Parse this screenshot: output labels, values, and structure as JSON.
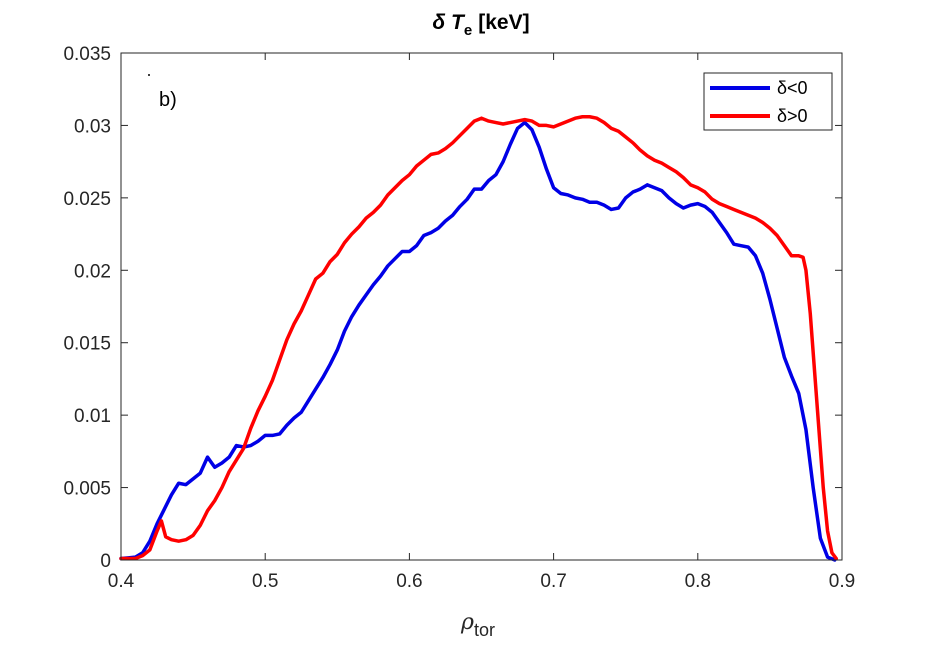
{
  "chart_data": {
    "type": "line",
    "title": "δ T",
    "title_subscript": "e",
    "title_suffix": "[keV]",
    "xlabel": "ρ",
    "xlabel_subscript": "tor",
    "ylabel": "",
    "annotation": "b)",
    "xlim": [
      0.4,
      0.9
    ],
    "ylim": [
      0,
      0.035
    ],
    "xticks": [
      0.4,
      0.5,
      0.6,
      0.7,
      0.8,
      0.9
    ],
    "xtick_labels": [
      "0.4",
      "0.5",
      "0.6",
      "0.7",
      "0.8",
      "0.9"
    ],
    "yticks": [
      0,
      0.005,
      0.01,
      0.015,
      0.02,
      0.025,
      0.03,
      0.035
    ],
    "ytick_labels": [
      "0",
      "0.005",
      "0.01",
      "0.015",
      "0.02",
      "0.025",
      "0.03",
      "0.035"
    ],
    "legend_position": "top-right",
    "series": [
      {
        "name": "δ<0",
        "color": "#0000e6",
        "points": [
          [
            0.4,
            0.0001
          ],
          [
            0.41,
            0.0002
          ],
          [
            0.415,
            0.0005
          ],
          [
            0.42,
            0.0013
          ],
          [
            0.425,
            0.0025
          ],
          [
            0.43,
            0.0035
          ],
          [
            0.435,
            0.0045
          ],
          [
            0.44,
            0.0053
          ],
          [
            0.445,
            0.0052
          ],
          [
            0.45,
            0.0056
          ],
          [
            0.455,
            0.006
          ],
          [
            0.46,
            0.0071
          ],
          [
            0.465,
            0.0064
          ],
          [
            0.47,
            0.0067
          ],
          [
            0.475,
            0.0071
          ],
          [
            0.48,
            0.0079
          ],
          [
            0.485,
            0.0078
          ],
          [
            0.49,
            0.0079
          ],
          [
            0.495,
            0.0082
          ],
          [
            0.5,
            0.0086
          ],
          [
            0.505,
            0.0086
          ],
          [
            0.51,
            0.0087
          ],
          [
            0.515,
            0.0093
          ],
          [
            0.52,
            0.0098
          ],
          [
            0.525,
            0.0102
          ],
          [
            0.53,
            0.011
          ],
          [
            0.535,
            0.0118
          ],
          [
            0.54,
            0.0126
          ],
          [
            0.545,
            0.0135
          ],
          [
            0.55,
            0.0145
          ],
          [
            0.555,
            0.0158
          ],
          [
            0.56,
            0.0168
          ],
          [
            0.565,
            0.0176
          ],
          [
            0.57,
            0.0183
          ],
          [
            0.575,
            0.019
          ],
          [
            0.58,
            0.0196
          ],
          [
            0.585,
            0.0203
          ],
          [
            0.59,
            0.0208
          ],
          [
            0.595,
            0.0213
          ],
          [
            0.6,
            0.0213
          ],
          [
            0.605,
            0.0217
          ],
          [
            0.61,
            0.0224
          ],
          [
            0.615,
            0.0226
          ],
          [
            0.62,
            0.0229
          ],
          [
            0.625,
            0.0234
          ],
          [
            0.63,
            0.0238
          ],
          [
            0.635,
            0.0244
          ],
          [
            0.64,
            0.0249
          ],
          [
            0.645,
            0.0256
          ],
          [
            0.65,
            0.0256
          ],
          [
            0.655,
            0.0262
          ],
          [
            0.66,
            0.0266
          ],
          [
            0.665,
            0.0275
          ],
          [
            0.67,
            0.0287
          ],
          [
            0.675,
            0.0298
          ],
          [
            0.68,
            0.0302
          ],
          [
            0.685,
            0.0297
          ],
          [
            0.69,
            0.0285
          ],
          [
            0.695,
            0.027
          ],
          [
            0.7,
            0.0257
          ],
          [
            0.705,
            0.0253
          ],
          [
            0.71,
            0.0252
          ],
          [
            0.715,
            0.025
          ],
          [
            0.72,
            0.0249
          ],
          [
            0.725,
            0.0247
          ],
          [
            0.73,
            0.0247
          ],
          [
            0.735,
            0.0245
          ],
          [
            0.74,
            0.0242
          ],
          [
            0.745,
            0.0243
          ],
          [
            0.75,
            0.025
          ],
          [
            0.755,
            0.0254
          ],
          [
            0.76,
            0.0256
          ],
          [
            0.765,
            0.0259
          ],
          [
            0.77,
            0.0257
          ],
          [
            0.775,
            0.0255
          ],
          [
            0.78,
            0.025
          ],
          [
            0.785,
            0.0246
          ],
          [
            0.79,
            0.0243
          ],
          [
            0.795,
            0.0245
          ],
          [
            0.8,
            0.0246
          ],
          [
            0.805,
            0.0244
          ],
          [
            0.81,
            0.024
          ],
          [
            0.815,
            0.0233
          ],
          [
            0.82,
            0.0226
          ],
          [
            0.825,
            0.0218
          ],
          [
            0.83,
            0.0217
          ],
          [
            0.835,
            0.0216
          ],
          [
            0.84,
            0.021
          ],
          [
            0.845,
            0.0198
          ],
          [
            0.85,
            0.018
          ],
          [
            0.855,
            0.016
          ],
          [
            0.86,
            0.014
          ],
          [
            0.865,
            0.0127
          ],
          [
            0.87,
            0.0115
          ],
          [
            0.875,
            0.009
          ],
          [
            0.88,
            0.005
          ],
          [
            0.885,
            0.0015
          ],
          [
            0.89,
            0.0002
          ],
          [
            0.895,
            0.0
          ]
        ]
      },
      {
        "name": "δ>0",
        "color": "#ff0000",
        "points": [
          [
            0.4,
            0.0001
          ],
          [
            0.41,
            0.0001
          ],
          [
            0.415,
            0.0003
          ],
          [
            0.42,
            0.0007
          ],
          [
            0.425,
            0.002
          ],
          [
            0.428,
            0.0027
          ],
          [
            0.431,
            0.0016
          ],
          [
            0.435,
            0.0014
          ],
          [
            0.44,
            0.0013
          ],
          [
            0.445,
            0.0014
          ],
          [
            0.45,
            0.0017
          ],
          [
            0.455,
            0.0024
          ],
          [
            0.46,
            0.0034
          ],
          [
            0.465,
            0.0041
          ],
          [
            0.47,
            0.005
          ],
          [
            0.475,
            0.0061
          ],
          [
            0.48,
            0.0069
          ],
          [
            0.485,
            0.0077
          ],
          [
            0.49,
            0.0091
          ],
          [
            0.495,
            0.0103
          ],
          [
            0.5,
            0.0113
          ],
          [
            0.505,
            0.0124
          ],
          [
            0.51,
            0.0138
          ],
          [
            0.515,
            0.0152
          ],
          [
            0.52,
            0.0163
          ],
          [
            0.525,
            0.0172
          ],
          [
            0.53,
            0.0183
          ],
          [
            0.535,
            0.0194
          ],
          [
            0.54,
            0.0198
          ],
          [
            0.545,
            0.0206
          ],
          [
            0.55,
            0.0211
          ],
          [
            0.555,
            0.0219
          ],
          [
            0.56,
            0.0225
          ],
          [
            0.565,
            0.023
          ],
          [
            0.57,
            0.0236
          ],
          [
            0.575,
            0.024
          ],
          [
            0.58,
            0.0245
          ],
          [
            0.585,
            0.0252
          ],
          [
            0.59,
            0.0257
          ],
          [
            0.595,
            0.0262
          ],
          [
            0.6,
            0.0266
          ],
          [
            0.605,
            0.0272
          ],
          [
            0.61,
            0.0276
          ],
          [
            0.615,
            0.028
          ],
          [
            0.62,
            0.0281
          ],
          [
            0.625,
            0.0284
          ],
          [
            0.63,
            0.0288
          ],
          [
            0.635,
            0.0293
          ],
          [
            0.64,
            0.0298
          ],
          [
            0.645,
            0.0303
          ],
          [
            0.65,
            0.0305
          ],
          [
            0.655,
            0.0303
          ],
          [
            0.66,
            0.0302
          ],
          [
            0.665,
            0.0301
          ],
          [
            0.67,
            0.0302
          ],
          [
            0.675,
            0.0303
          ],
          [
            0.68,
            0.0304
          ],
          [
            0.685,
            0.0303
          ],
          [
            0.69,
            0.03
          ],
          [
            0.695,
            0.03
          ],
          [
            0.7,
            0.0299
          ],
          [
            0.705,
            0.0301
          ],
          [
            0.71,
            0.0303
          ],
          [
            0.715,
            0.0305
          ],
          [
            0.72,
            0.0306
          ],
          [
            0.725,
            0.0306
          ],
          [
            0.73,
            0.0305
          ],
          [
            0.735,
            0.0302
          ],
          [
            0.74,
            0.0298
          ],
          [
            0.745,
            0.0296
          ],
          [
            0.75,
            0.0292
          ],
          [
            0.755,
            0.0288
          ],
          [
            0.76,
            0.0283
          ],
          [
            0.765,
            0.0279
          ],
          [
            0.77,
            0.0276
          ],
          [
            0.775,
            0.0274
          ],
          [
            0.78,
            0.0271
          ],
          [
            0.785,
            0.0268
          ],
          [
            0.79,
            0.0264
          ],
          [
            0.795,
            0.0259
          ],
          [
            0.8,
            0.0257
          ],
          [
            0.805,
            0.0254
          ],
          [
            0.81,
            0.0249
          ],
          [
            0.815,
            0.0246
          ],
          [
            0.82,
            0.0244
          ],
          [
            0.825,
            0.0242
          ],
          [
            0.83,
            0.024
          ],
          [
            0.835,
            0.0238
          ],
          [
            0.84,
            0.0236
          ],
          [
            0.845,
            0.0233
          ],
          [
            0.85,
            0.0229
          ],
          [
            0.855,
            0.0224
          ],
          [
            0.86,
            0.0217
          ],
          [
            0.865,
            0.021
          ],
          [
            0.87,
            0.021
          ],
          [
            0.873,
            0.0209
          ],
          [
            0.875,
            0.02
          ],
          [
            0.878,
            0.017
          ],
          [
            0.881,
            0.013
          ],
          [
            0.884,
            0.009
          ],
          [
            0.887,
            0.005
          ],
          [
            0.89,
            0.002
          ],
          [
            0.893,
            0.0005
          ],
          [
            0.896,
            0.0001
          ]
        ]
      }
    ]
  }
}
